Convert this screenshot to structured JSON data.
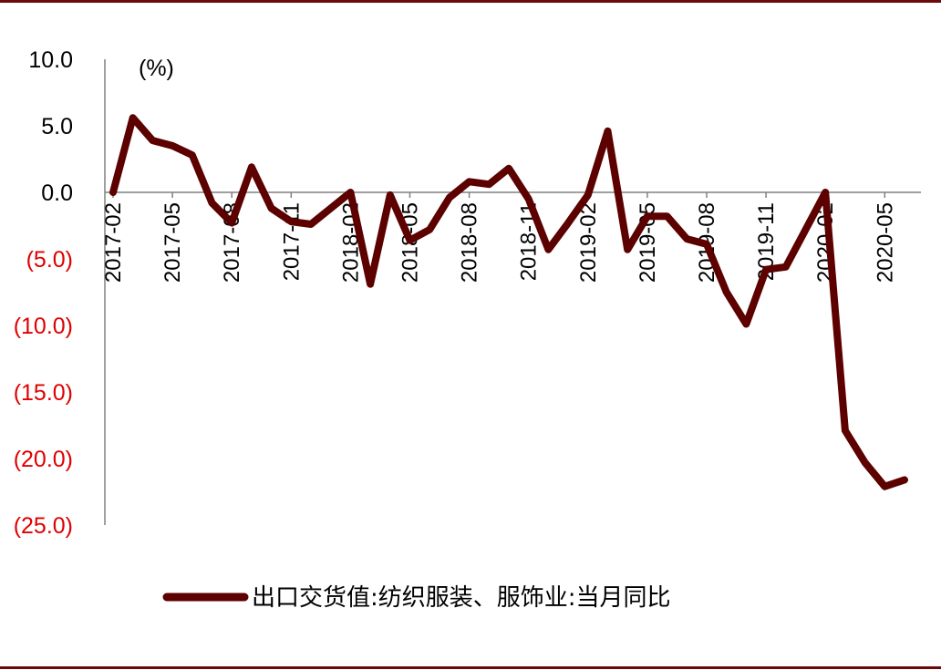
{
  "colors": {
    "series": "#5c0000",
    "rule": "#6b0a0a",
    "negative_tick": "#e00000",
    "positive_tick": "#000000",
    "axis": "#808080"
  },
  "chart_data": {
    "type": "line",
    "unit_label": "(%)",
    "ylim": [
      -25,
      10
    ],
    "yticks": [
      {
        "value": 10,
        "label": "10.0"
      },
      {
        "value": 5,
        "label": "5.0"
      },
      {
        "value": 0,
        "label": "0.0"
      },
      {
        "value": -5,
        "label": "(5.0)"
      },
      {
        "value": -10,
        "label": "(10.0)"
      },
      {
        "value": -15,
        "label": "(15.0)"
      },
      {
        "value": -20,
        "label": "(20.0)"
      },
      {
        "value": -25,
        "label": "(25.0)"
      }
    ],
    "x": [
      "2017-02",
      "2017-03",
      "2017-04",
      "2017-05",
      "2017-06",
      "2017-07",
      "2017-08",
      "2017-09",
      "2017-10",
      "2017-11",
      "2017-12",
      "2018-01",
      "2018-02",
      "2018-03",
      "2018-04",
      "2018-05",
      "2018-06",
      "2018-07",
      "2018-08",
      "2018-09",
      "2018-10",
      "2018-11",
      "2018-12",
      "2019-01",
      "2019-02",
      "2019-03",
      "2019-04",
      "2019-05",
      "2019-06",
      "2019-07",
      "2019-08",
      "2019-09",
      "2019-10",
      "2019-11",
      "2019-12",
      "2020-01",
      "2020-02",
      "2020-03",
      "2020-04",
      "2020-05",
      "2020-06"
    ],
    "xtick_labels": [
      "2017-02",
      "2017-05",
      "2017-08",
      "2017-11",
      "2018-02",
      "2018-05",
      "2018-08",
      "2018-11",
      "2019-02",
      "2019-05",
      "2019-08",
      "2019-11",
      "2020-02",
      "2020-05"
    ],
    "grid": false,
    "legend_position": "bottom",
    "series": [
      {
        "name": "出口交货值:纺织服装、服饰业:当月同比",
        "values": [
          0.0,
          5.6,
          3.9,
          3.5,
          2.8,
          -0.8,
          -2.3,
          1.9,
          -1.2,
          -2.2,
          -2.4,
          -1.2,
          0.0,
          -6.9,
          -0.2,
          -3.6,
          -2.8,
          -0.4,
          0.8,
          0.6,
          1.8,
          -0.5,
          -4.3,
          -2.3,
          -0.2,
          4.6,
          -4.3,
          -1.8,
          -1.8,
          -3.5,
          -3.9,
          -7.5,
          -9.9,
          -5.8,
          -5.6,
          -2.8,
          0.0,
          -17.9,
          -20.3,
          -22.1,
          -21.6
        ]
      }
    ]
  }
}
